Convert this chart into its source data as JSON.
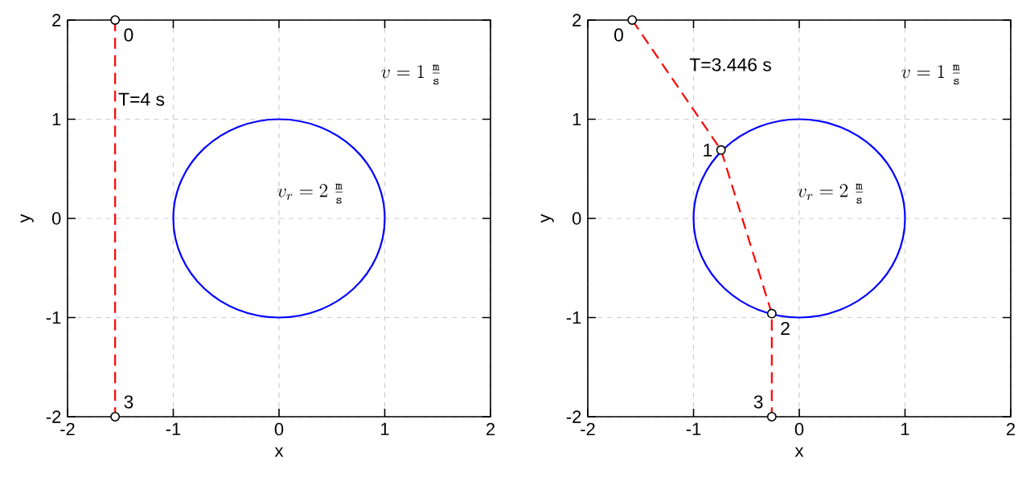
{
  "chart_data": [
    {
      "type": "line",
      "xlabel": "x",
      "ylabel": "y",
      "xlim": [
        -2,
        2
      ],
      "ylim": [
        -2,
        2
      ],
      "xticks": [
        -2,
        -1,
        0,
        1,
        2
      ],
      "yticks": [
        -2,
        -1,
        0,
        1,
        2
      ],
      "grid": true,
      "series": [
        {
          "color": "#ff0000",
          "marker": "circle",
          "line_style": "dashed",
          "x": [
            -1.55,
            -1.55
          ],
          "values": [
            2,
            -2
          ]
        }
      ],
      "annotations": [
        {
          "text": "0",
          "x": -1.55,
          "y": 2
        },
        {
          "text": "3",
          "x": -1.55,
          "y": -2
        },
        "T=4 s",
        "v=1\\;\\frac{\\mathtt{m}}{\\mathtt{s}}",
        "v_r=2\\;\\frac{\\mathtt{m}}{\\mathtt{s}}"
      ]
    },
    {
      "type": "line",
      "xlabel": "x",
      "ylabel": "y",
      "xlim": [
        -2,
        2
      ],
      "ylim": [
        -2,
        2
      ],
      "xticks": [
        -2,
        -1,
        0,
        1,
        2
      ],
      "yticks": [
        -2,
        -1,
        0,
        1,
        2
      ],
      "grid": true,
      "series": [
        {
          "color": "#ff0000",
          "marker": "circle",
          "line_style": "dashed",
          "x": [
            -1.58,
            -0.74,
            -0.26,
            -0.26
          ],
          "values": [
            2,
            0.69,
            -0.96,
            -2
          ]
        }
      ],
      "annotations": [
        {
          "text": "0",
          "x": -1.58,
          "y": 2
        },
        {
          "text": "1",
          "x": -0.74,
          "y": 0.69
        },
        {
          "text": "2",
          "x": -0.26,
          "y": -0.96
        },
        {
          "text": "3",
          "x": -0.26,
          "y": -2
        },
        "T=3.446 s",
        "v=1\\;\\frac{\\mathtt{m}}{\\mathtt{s}}",
        "v_r=2\\;\\frac{\\mathtt{m}}{\\mathtt{s}}"
      ]
    }
  ]
}
